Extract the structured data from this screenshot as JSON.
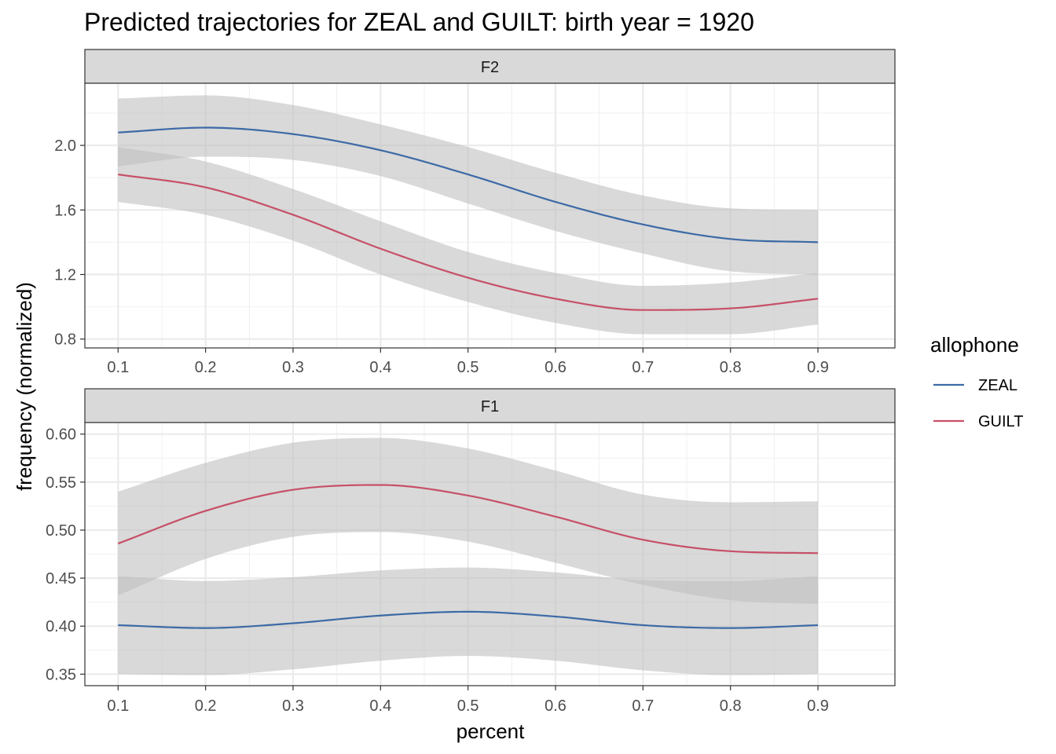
{
  "chart_data": {
    "type": "line",
    "title": "Predicted trajectories for ZEAL and GUILT: birth year = 1920",
    "xlabel": "percent",
    "ylabel": "frequency (normalized)",
    "x_ticks": [
      "0.1",
      "0.2",
      "0.3",
      "0.4",
      "0.5",
      "0.6",
      "0.7",
      "0.8",
      "0.9"
    ],
    "xlim": [
      0.062,
      0.988
    ],
    "grid": true,
    "legend": {
      "title": "allophone",
      "position": "right",
      "entries": [
        {
          "label": "ZEAL",
          "color": "#3c6aa6"
        },
        {
          "label": "GUILT",
          "color": "#c65068"
        }
      ]
    },
    "ribbon_color": "#bfbfbf",
    "panels": [
      {
        "strip": "F2",
        "ylim": [
          0.745,
          2.385
        ],
        "y_ticks": [
          "0.8",
          "1.2",
          "1.6",
          "2.0"
        ],
        "series": [
          {
            "name": "ZEAL",
            "color": "#3c6aa6",
            "x": [
              0.1,
              0.2,
              0.3,
              0.4,
              0.5,
              0.6,
              0.7,
              0.8,
              0.9
            ],
            "y": [
              2.08,
              2.11,
              2.07,
              1.97,
              1.82,
              1.65,
              1.51,
              1.42,
              1.4
            ],
            "lower": [
              1.87,
              1.93,
              1.91,
              1.81,
              1.64,
              1.47,
              1.33,
              1.22,
              1.2
            ],
            "upper": [
              2.29,
              2.31,
              2.25,
              2.13,
              1.99,
              1.83,
              1.69,
              1.61,
              1.6
            ]
          },
          {
            "name": "GUILT",
            "color": "#c65068",
            "x": [
              0.1,
              0.2,
              0.3,
              0.4,
              0.5,
              0.6,
              0.7,
              0.8,
              0.9
            ],
            "y": [
              1.82,
              1.74,
              1.57,
              1.36,
              1.18,
              1.05,
              0.98,
              0.99,
              1.05
            ],
            "lower": [
              1.65,
              1.57,
              1.41,
              1.2,
              1.03,
              0.9,
              0.83,
              0.83,
              0.89
            ],
            "upper": [
              1.99,
              1.9,
              1.73,
              1.53,
              1.34,
              1.21,
              1.13,
              1.15,
              1.21
            ]
          }
        ]
      },
      {
        "strip": "F1",
        "ylim": [
          0.338,
          0.612
        ],
        "y_ticks": [
          "0.35",
          "0.40",
          "0.45",
          "0.50",
          "0.55",
          "0.60"
        ],
        "series": [
          {
            "name": "ZEAL",
            "color": "#3c6aa6",
            "x": [
              0.1,
              0.2,
              0.3,
              0.4,
              0.5,
              0.6,
              0.7,
              0.8,
              0.9
            ],
            "y": [
              0.401,
              0.398,
              0.403,
              0.411,
              0.415,
              0.41,
              0.401,
              0.398,
              0.401
            ],
            "lower": [
              0.35,
              0.349,
              0.355,
              0.364,
              0.369,
              0.364,
              0.354,
              0.349,
              0.35
            ],
            "upper": [
              0.452,
              0.447,
              0.451,
              0.458,
              0.461,
              0.456,
              0.448,
              0.447,
              0.452
            ]
          },
          {
            "name": "GUILT",
            "color": "#c65068",
            "x": [
              0.1,
              0.2,
              0.3,
              0.4,
              0.5,
              0.6,
              0.7,
              0.8,
              0.9
            ],
            "y": [
              0.486,
              0.52,
              0.542,
              0.547,
              0.536,
              0.514,
              0.49,
              0.478,
              0.476
            ],
            "lower": [
              0.432,
              0.47,
              0.493,
              0.498,
              0.488,
              0.466,
              0.443,
              0.427,
              0.423
            ],
            "upper": [
              0.54,
              0.57,
              0.591,
              0.596,
              0.585,
              0.562,
              0.537,
              0.529,
              0.53
            ]
          }
        ]
      }
    ]
  }
}
